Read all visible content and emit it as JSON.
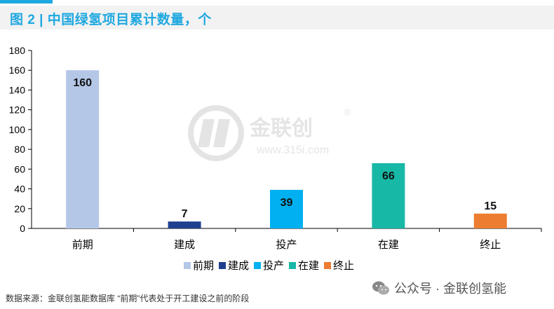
{
  "title": "图 2 | 中国绿氢项目累计数量，个",
  "chart_data": {
    "type": "bar",
    "categories": [
      "前期",
      "建成",
      "投产",
      "在建",
      "终止"
    ],
    "values": [
      160,
      7,
      39,
      66,
      15
    ],
    "colors": [
      "#b4c7e7",
      "#1f3f8f",
      "#00b0f0",
      "#17b8a6",
      "#ed7d31"
    ],
    "ylim": [
      0,
      180
    ],
    "yticks": [
      0,
      20,
      40,
      60,
      80,
      100,
      120,
      140,
      160,
      180
    ],
    "legend": [
      "前期",
      "建成",
      "投产",
      "在建",
      "终止"
    ],
    "legend_position": "bottom",
    "grid": false
  },
  "footer": {
    "source": "数据来源：金联创氢能数据库    “前期”代表处于开工建设之前的阶段",
    "brand": "公众号 · 金联创氢能"
  },
  "watermark": {
    "name": "金联创",
    "url": "www.315i.com",
    "reg": "®"
  }
}
